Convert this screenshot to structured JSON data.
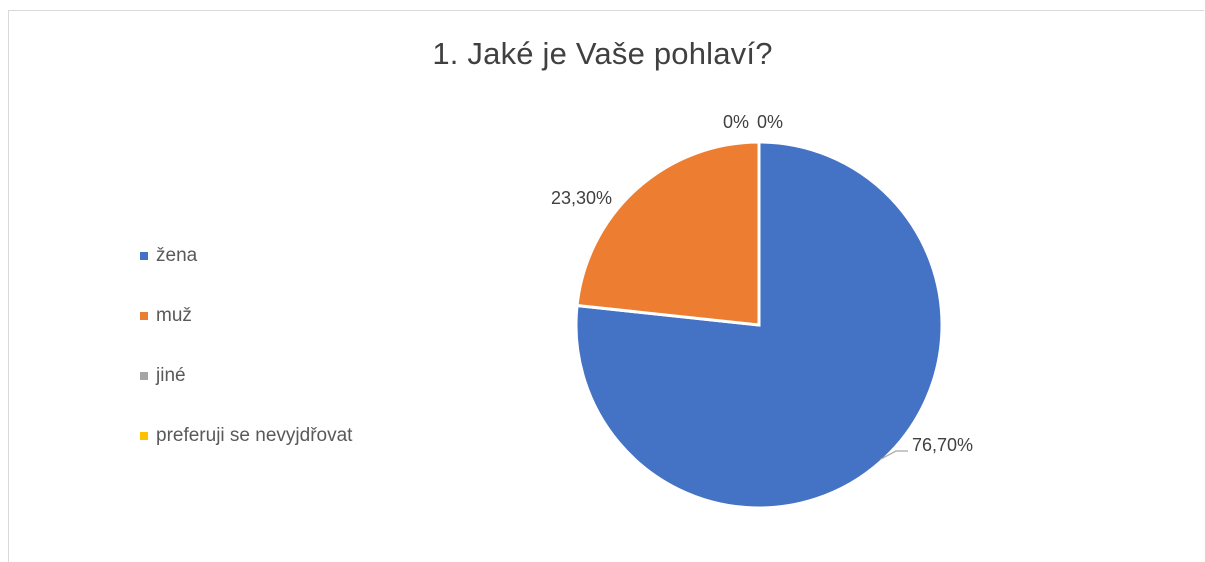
{
  "chart_data": {
    "type": "pie",
    "title": "1. Jaké je Vaše pohlaví?",
    "categories": [
      "žena",
      "muž",
      "jiné",
      "preferuji se nevyjdřovat"
    ],
    "values": [
      76.7,
      23.3,
      0,
      0
    ],
    "data_labels": [
      "76,70%",
      "23,30%",
      "0%",
      "0%"
    ],
    "colors": [
      "#4472C4",
      "#ED7D31",
      "#A5A5A5",
      "#FFC000"
    ],
    "legend_position": "left",
    "start_angle": "top, clockwise"
  }
}
